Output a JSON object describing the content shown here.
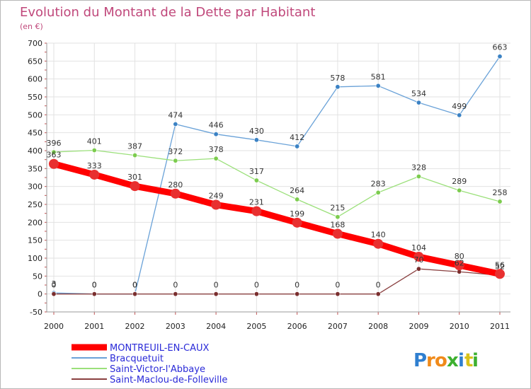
{
  "chart_data": {
    "type": "line",
    "title": "Evolution du Montant de la Dette par Habitant",
    "subtitle": "(en €)",
    "xlabel": "",
    "ylabel": "",
    "x": [
      "2000",
      "2001",
      "2002",
      "2003",
      "2004",
      "2005",
      "2006",
      "2007",
      "2008",
      "2009",
      "2010",
      "2011"
    ],
    "ylim": [
      -50,
      700
    ],
    "yticks": [
      "-50",
      "0",
      "50",
      "100",
      "150",
      "200",
      "250",
      "300",
      "350",
      "400",
      "450",
      "500",
      "550",
      "600",
      "650",
      "700"
    ],
    "grid": true,
    "legend_position": "bottom-left",
    "series": [
      {
        "name": "MONTREUIL-EN-CAUX",
        "color": "#ff0000",
        "marker": "#e83030",
        "values": [
          363,
          333,
          301,
          280,
          249,
          231,
          199,
          168,
          140,
          104,
          80,
          56
        ],
        "labels": [
          "363",
          "333",
          "301",
          "280",
          "249",
          "231",
          "199",
          "168",
          "140",
          "104",
          "80",
          "56"
        ]
      },
      {
        "name": "Bracquetuit",
        "color": "#6aa2d8",
        "marker": "#3b82c4",
        "values": [
          3,
          0,
          0,
          474,
          446,
          430,
          412,
          578,
          581,
          534,
          499,
          663
        ],
        "labels": [
          "3",
          "0",
          "0",
          "474",
          "446",
          "430",
          "412",
          "578",
          "581",
          "534",
          "499",
          "663"
        ]
      },
      {
        "name": "Saint-Victor-l'Abbaye",
        "color": "#9be07a",
        "marker": "#7ccc4e",
        "values": [
          396,
          401,
          387,
          372,
          378,
          317,
          264,
          215,
          283,
          328,
          289,
          258
        ],
        "labels": [
          "396",
          "401",
          "387",
          "372",
          "378",
          "317",
          "264",
          "215",
          "283",
          "328",
          "289",
          "258"
        ]
      },
      {
        "name": "Saint-Maclou-de-Folleville",
        "color": "#8a4040",
        "marker": "#7a2e2e",
        "values": [
          0,
          0,
          0,
          0,
          0,
          0,
          0,
          0,
          0,
          70,
          62,
          52
        ],
        "labels": [
          "0",
          "0",
          "0",
          "0",
          "0",
          "0",
          "0",
          "0",
          "0",
          "70",
          "62",
          "52"
        ]
      }
    ]
  },
  "brand": {
    "letters": [
      {
        "char": "P",
        "color": "#2f7fd0"
      },
      {
        "char": "r",
        "color": "#f08a1a"
      },
      {
        "char": "o",
        "color": "#f08a1a"
      },
      {
        "char": "x",
        "color": "#3db030"
      },
      {
        "char": "i",
        "color": "#2f7fd0"
      },
      {
        "char": "t",
        "color": "#d9c21a"
      },
      {
        "char": "i",
        "color": "#3db030"
      }
    ]
  }
}
